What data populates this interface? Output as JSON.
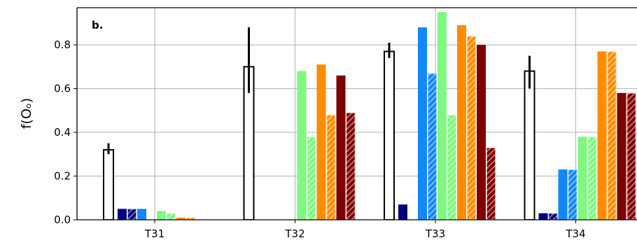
{
  "chart_data": {
    "type": "bar",
    "panel_label": "b.",
    "ylabel": "f(Oₒ)",
    "xlabel": "",
    "ylim": [
      0,
      0.97
    ],
    "yticks": [
      0.0,
      0.2,
      0.4,
      0.6,
      0.8
    ],
    "ytick_labels": [
      "0.0",
      "0.2",
      "0.4",
      "0.6",
      "0.8"
    ],
    "grid": true,
    "categories": [
      "T31",
      "T32",
      "T33",
      "T34"
    ],
    "reference": {
      "values": [
        0.32,
        0.7,
        0.77,
        0.68
      ],
      "error_low": [
        0.3,
        0.58,
        0.74,
        0.6
      ],
      "error_high": [
        0.35,
        0.88,
        0.81,
        0.75
      ],
      "style": "outline",
      "color": "#000000"
    },
    "series": [
      {
        "values": [
          0.05,
          0.0,
          0.07,
          0.03
        ],
        "color": "#00007f",
        "hatched": false
      },
      {
        "values": [
          0.05,
          0.0,
          0.0,
          0.03
        ],
        "color": "#00007f",
        "hatched": true
      },
      {
        "values": [
          0.05,
          0.0,
          0.88,
          0.23
        ],
        "color": "#1188ff",
        "hatched": false
      },
      {
        "values": [
          0.0,
          0.0,
          0.67,
          0.23
        ],
        "color": "#1188ff",
        "hatched": true
      },
      {
        "values": [
          0.04,
          0.68,
          0.95,
          0.38
        ],
        "color": "#7ff87f",
        "hatched": false
      },
      {
        "values": [
          0.03,
          0.38,
          0.48,
          0.38
        ],
        "color": "#7ff87f",
        "hatched": true
      },
      {
        "values": [
          0.01,
          0.71,
          0.89,
          0.77
        ],
        "color": "#ff8c00",
        "hatched": false
      },
      {
        "values": [
          0.01,
          0.48,
          0.84,
          0.77
        ],
        "color": "#ff8c00",
        "hatched": true
      },
      {
        "values": [
          0.0,
          0.66,
          0.8,
          0.58
        ],
        "color": "#7f0000",
        "hatched": false
      },
      {
        "values": [
          0.0,
          0.49,
          0.33,
          0.58
        ],
        "color": "#7f0000",
        "hatched": true
      }
    ]
  }
}
